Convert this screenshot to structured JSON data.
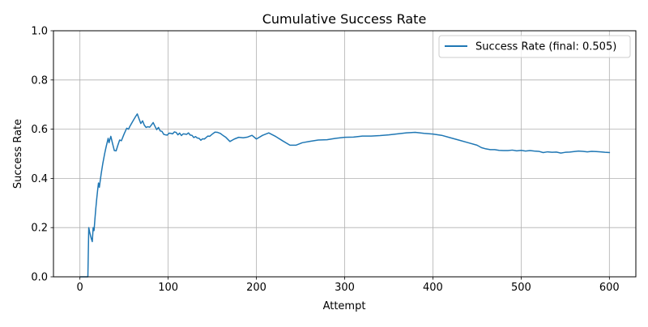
{
  "chart_data": {
    "type": "line",
    "title": "Cumulative Success Rate",
    "xlabel": "Attempt",
    "ylabel": "Success Rate",
    "xlim": [
      -30,
      630
    ],
    "ylim": [
      0,
      1
    ],
    "xticks": [
      0,
      100,
      200,
      300,
      400,
      500,
      600
    ],
    "yticks": [
      0.0,
      0.2,
      0.4,
      0.6,
      0.8,
      1.0
    ],
    "xtick_labels": [
      "0",
      "100",
      "200",
      "300",
      "400",
      "500",
      "600"
    ],
    "ytick_labels": [
      "0.0",
      "0.2",
      "0.4",
      "0.6",
      "0.8",
      "1.0"
    ],
    "grid": true,
    "legend_position": "top-right",
    "colors": {
      "line": "#1f77b4",
      "grid": "#b0b0b0",
      "axes": "#000000"
    },
    "series": [
      {
        "name": "Success Rate (final: 0.505)",
        "x": [
          1,
          2,
          3,
          4,
          5,
          6,
          7,
          8,
          9,
          10,
          11,
          12,
          13,
          14,
          15,
          16,
          17,
          18,
          19,
          20,
          21,
          22,
          23,
          24,
          25,
          26,
          27,
          28,
          29,
          30,
          31,
          32,
          33,
          34,
          35,
          37,
          39,
          41,
          43,
          45,
          47,
          50,
          53,
          55,
          57,
          60,
          63,
          65,
          67,
          69,
          71,
          73,
          75,
          77,
          79,
          81,
          83,
          85,
          87,
          89,
          91,
          93,
          95,
          97,
          99,
          101,
          103,
          105,
          107,
          109,
          111,
          113,
          115,
          117,
          119,
          121,
          123,
          125,
          127,
          129,
          131,
          133,
          135,
          137,
          139,
          141,
          143,
          145,
          147,
          150,
          153,
          156,
          159,
          162,
          165,
          170,
          175,
          180,
          185,
          190,
          195,
          200,
          207,
          214,
          222,
          230,
          238,
          245,
          252,
          260,
          270,
          280,
          290,
          300,
          310,
          320,
          330,
          340,
          350,
          360,
          370,
          380,
          390,
          400,
          410,
          420,
          430,
          440,
          450,
          455,
          460,
          465,
          470,
          475,
          480,
          485,
          490,
          495,
          500,
          505,
          510,
          515,
          520,
          525,
          530,
          535,
          540,
          545,
          550,
          555,
          560,
          565,
          570,
          575,
          580,
          585,
          590,
          595,
          600
        ],
        "values": [
          0.0,
          0.0,
          0.0,
          0.0,
          0.0,
          0.0,
          0.0,
          0.0,
          0.0,
          0.2,
          0.182,
          0.167,
          0.154,
          0.143,
          0.2,
          0.188,
          0.235,
          0.278,
          0.316,
          0.35,
          0.381,
          0.364,
          0.391,
          0.417,
          0.44,
          0.462,
          0.481,
          0.5,
          0.517,
          0.533,
          0.548,
          0.563,
          0.545,
          0.559,
          0.571,
          0.541,
          0.513,
          0.512,
          0.535,
          0.556,
          0.553,
          0.58,
          0.604,
          0.6,
          0.614,
          0.633,
          0.651,
          0.662,
          0.642,
          0.623,
          0.634,
          0.616,
          0.607,
          0.61,
          0.608,
          0.617,
          0.627,
          0.612,
          0.598,
          0.607,
          0.593,
          0.591,
          0.579,
          0.577,
          0.576,
          0.584,
          0.583,
          0.581,
          0.589,
          0.587,
          0.577,
          0.584,
          0.574,
          0.581,
          0.58,
          0.579,
          0.585,
          0.576,
          0.575,
          0.566,
          0.57,
          0.564,
          0.563,
          0.555,
          0.561,
          0.56,
          0.566,
          0.572,
          0.571,
          0.58,
          0.588,
          0.587,
          0.583,
          0.575,
          0.568,
          0.55,
          0.56,
          0.567,
          0.565,
          0.568,
          0.575,
          0.56,
          0.575,
          0.585,
          0.57,
          0.552,
          0.535,
          0.535,
          0.545,
          0.55,
          0.556,
          0.557,
          0.563,
          0.567,
          0.568,
          0.572,
          0.572,
          0.574,
          0.577,
          0.581,
          0.585,
          0.587,
          0.583,
          0.58,
          0.575,
          0.565,
          0.555,
          0.545,
          0.535,
          0.525,
          0.52,
          0.517,
          0.517,
          0.514,
          0.513,
          0.513,
          0.515,
          0.512,
          0.514,
          0.511,
          0.513,
          0.511,
          0.51,
          0.505,
          0.508,
          0.506,
          0.507,
          0.503,
          0.506,
          0.507,
          0.509,
          0.511,
          0.51,
          0.508,
          0.51,
          0.509,
          0.508,
          0.506,
          0.505
        ]
      }
    ]
  }
}
